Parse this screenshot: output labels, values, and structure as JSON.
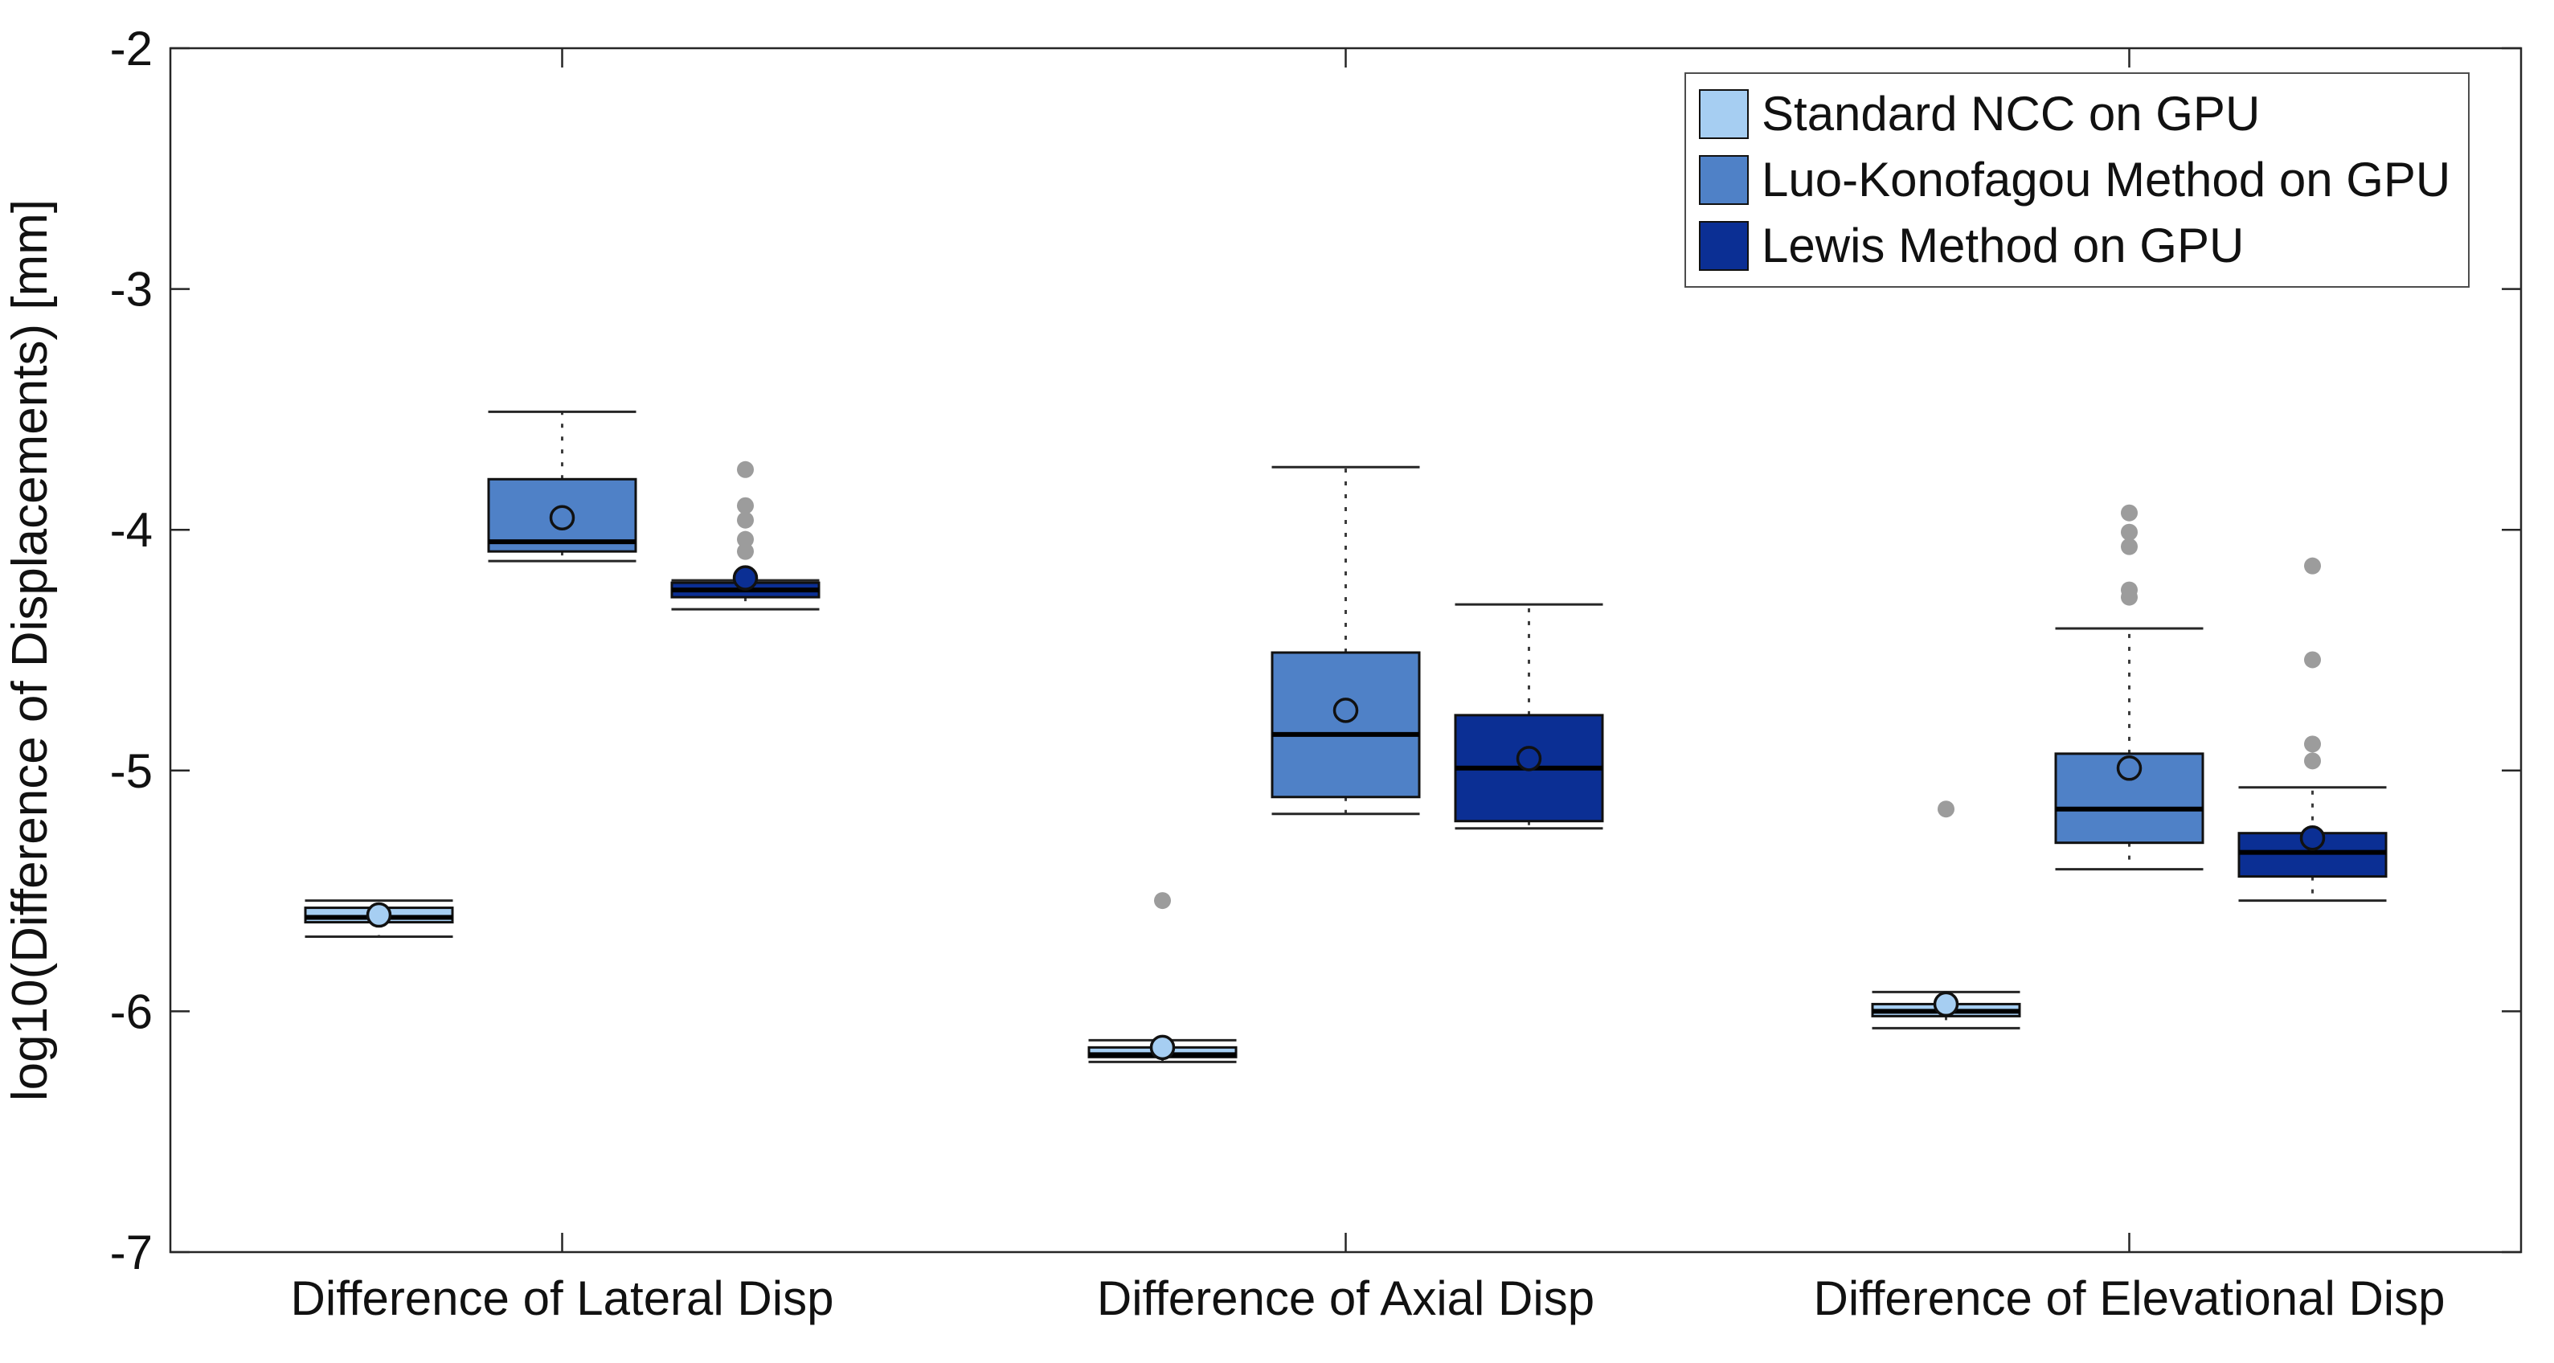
{
  "chart_data": {
    "type": "boxplot",
    "title": "",
    "xlabel": "",
    "ylabel": "log10(Difference of Displacements) [mm]",
    "ylim": [
      -7,
      -2
    ],
    "yticks": [
      -2,
      -3,
      -4,
      -5,
      -6,
      -7
    ],
    "grid": false,
    "legend_position": "top-right",
    "categories": [
      "Difference of Lateral Disp",
      "Difference of Axial Disp",
      "Difference of Elevational Disp"
    ],
    "series": [
      {
        "name": "Standard NCC on GPU",
        "color": "#A6CEF2",
        "boxes": [
          {
            "whisker_low": -5.69,
            "q1": -5.63,
            "median": -5.61,
            "q3": -5.57,
            "whisker_high": -5.54,
            "mean": -5.6,
            "outliers": []
          },
          {
            "whisker_low": -6.21,
            "q1": -6.19,
            "median": -6.18,
            "q3": -6.15,
            "whisker_high": -6.12,
            "mean": -6.15,
            "outliers": [
              -5.54
            ]
          },
          {
            "whisker_low": -6.07,
            "q1": -6.02,
            "median": -6.0,
            "q3": -5.97,
            "whisker_high": -5.92,
            "mean": -5.97,
            "outliers": [
              -5.16
            ]
          }
        ]
      },
      {
        "name": "Luo-Konofagou Method on GPU",
        "color": "#4F81C7",
        "boxes": [
          {
            "whisker_low": -4.13,
            "q1": -4.09,
            "median": -4.05,
            "q3": -3.79,
            "whisker_high": -3.51,
            "mean": -3.95,
            "outliers": []
          },
          {
            "whisker_low": -5.18,
            "q1": -5.11,
            "median": -4.85,
            "q3": -4.51,
            "whisker_high": -3.74,
            "mean": -4.75,
            "outliers": []
          },
          {
            "whisker_low": -5.41,
            "q1": -5.3,
            "median": -5.16,
            "q3": -4.93,
            "whisker_high": -4.41,
            "mean": -4.99,
            "outliers": [
              -3.93,
              -4.01,
              -4.07,
              -4.25,
              -4.28
            ]
          }
        ]
      },
      {
        "name": "Lewis Method on GPU",
        "color": "#0B2F94",
        "boxes": [
          {
            "whisker_low": -4.33,
            "q1": -4.28,
            "median": -4.25,
            "q3": -4.22,
            "whisker_high": -4.21,
            "mean": -4.2,
            "outliers": [
              -3.75,
              -3.9,
              -3.96,
              -4.04,
              -4.09
            ]
          },
          {
            "whisker_low": -5.24,
            "q1": -5.21,
            "median": -4.99,
            "q3": -4.77,
            "whisker_high": -4.31,
            "mean": -4.95,
            "outliers": []
          },
          {
            "whisker_low": -5.54,
            "q1": -5.44,
            "median": -5.34,
            "q3": -5.26,
            "whisker_high": -5.07,
            "mean": -5.28,
            "outliers": [
              -4.15,
              -4.54,
              -4.89,
              -4.96
            ]
          }
        ]
      }
    ],
    "colors": {
      "outlier": "#9C9C9C",
      "axis": "#262626",
      "median": "#000000",
      "text": "#111111",
      "background": "#FFFFFF"
    }
  }
}
